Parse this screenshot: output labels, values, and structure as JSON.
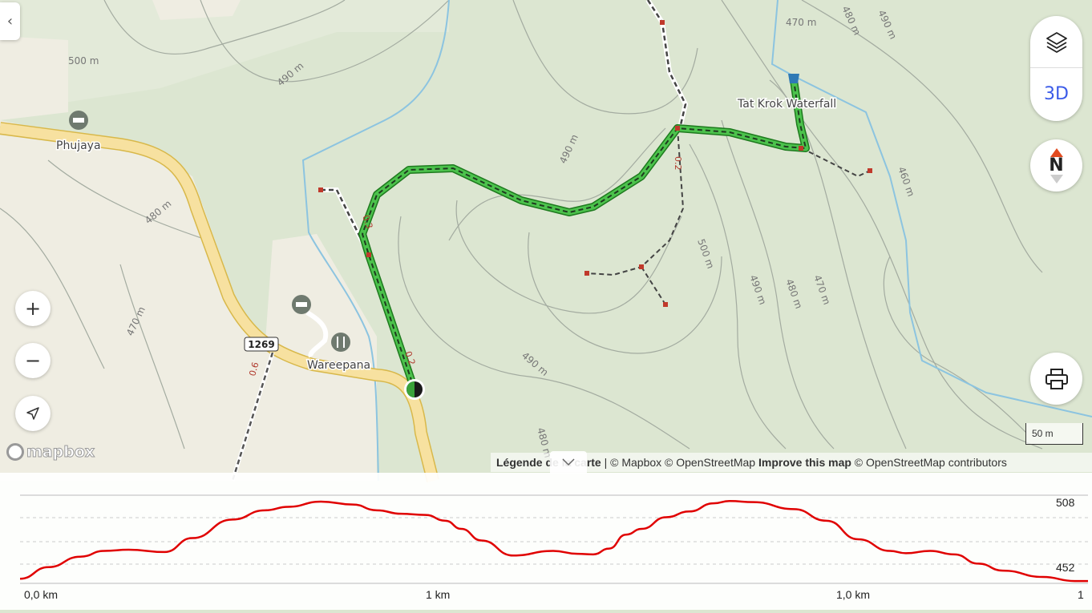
{
  "map": {
    "places": [
      {
        "name": "Phujaya",
        "icon": "hotel-icon"
      },
      {
        "name": "Wareepana",
        "icon": "restaurant-icon"
      },
      {
        "name": "Tat Krok Waterfall",
        "icon": "waterfall-icon"
      }
    ],
    "road_shield": "1269",
    "contour_labels": [
      "500 m",
      "490 m",
      "480 m",
      "470 m",
      "490 m",
      "490 m",
      "500 m",
      "490 m",
      "480 m",
      "470 m",
      "460 m",
      "470 m",
      "480 m",
      "490 m",
      "490 m",
      "480 m"
    ],
    "trail_distance_labels": [
      "0.3",
      "0.2",
      "0.2",
      "0.6"
    ],
    "scale_label": "50 m",
    "logo": "mapbox",
    "colors": {
      "land": "#dce6d1",
      "urban": "#efede2",
      "road": "#f7e1a0",
      "trail": "#3aa23a",
      "stream": "#8cc4e0",
      "contour": "#9aa39a"
    }
  },
  "controls": {
    "collapse_icon": "chevron-left-icon",
    "layers_icon": "layers-icon",
    "three_d_label": "3D",
    "compass_label": "N",
    "zoom_in": "+",
    "zoom_out": "−",
    "locate_icon": "navigation-arrow-icon",
    "print_icon": "printer-icon"
  },
  "attribution": {
    "legend": "Légende de la carte",
    "separator": "|",
    "mapbox": "© Mapbox",
    "osm": "© OpenStreetMap",
    "improve": "Improve this map",
    "osm_contrib": "© OpenStreetMap contributors"
  },
  "chart_data": {
    "type": "line",
    "title": "",
    "xlabel": "",
    "ylabel": "",
    "y_tick_labels": [
      "508",
      "452"
    ],
    "x_tick_labels": [
      "0,0 km",
      "1 km",
      "1,0 km",
      "1"
    ],
    "xlim": [
      0,
      1.278
    ],
    "ylim": [
      438,
      514
    ],
    "grid": true,
    "line_color": "#e00000",
    "series": [
      {
        "x": [
          0,
          0.034,
          0.072,
          0.101,
          0.13,
          0.173,
          0.206,
          0.254,
          0.293,
          0.321,
          0.36,
          0.398,
          0.427,
          0.456,
          0.485,
          0.509,
          0.528,
          0.552,
          0.59,
          0.638,
          0.667,
          0.686,
          0.705,
          0.725,
          0.744,
          0.773,
          0.801,
          0.83,
          0.849,
          0.878,
          0.926,
          0.965,
          1.003,
          1.041,
          1.06,
          1.089,
          1.118,
          1.147,
          1.176,
          1.224,
          1.262,
          1.278
        ],
        "y": [
          442,
          452,
          461,
          466,
          467,
          465,
          477,
          493,
          501,
          504,
          508.5,
          506,
          501,
          498,
          497,
          492,
          485,
          475,
          462,
          466,
          463.5,
          463,
          468,
          480,
          485,
          495,
          500,
          507,
          509,
          508,
          502,
          492,
          476,
          466,
          464,
          466,
          463,
          455,
          449,
          443.5,
          440,
          440
        ]
      }
    ]
  }
}
